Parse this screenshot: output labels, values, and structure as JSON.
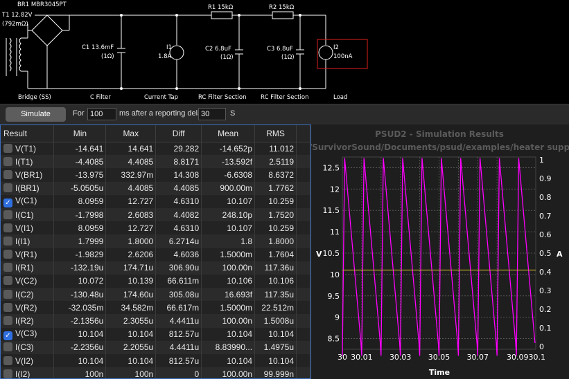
{
  "schematic": {
    "transformer_label": "T1 12.82V",
    "transformer_resistance": "(792mΩ)",
    "bridge_label": "BR1 MBR3045PT",
    "c1_label": "C1 13.6mF",
    "c1_esr": "(1Ω)",
    "i1_name": "I1",
    "i1_value": "1.8A",
    "r1_label": "R1 15kΩ",
    "r2_label": "R2 15kΩ",
    "c2_label": "C2 6.8uF",
    "c2_esr": "(1Ω)",
    "c3_label": "C3 6.8uF",
    "c3_esr": "(1Ω)",
    "i2_name": "I2",
    "i2_value": "100nA",
    "sections": [
      "Bridge (SS)",
      "C Filter",
      "Current Tap",
      "RC Filter Section",
      "RC Filter Section",
      "Load"
    ]
  },
  "toolbar": {
    "simulate_label": "Simulate",
    "for_label": "For",
    "duration_value": "100",
    "after_label": "ms after a reporting delay of",
    "delay_value": "30",
    "unit_label": "S"
  },
  "table": {
    "headers": [
      "Result",
      "Min",
      "Max",
      "Diff",
      "Mean",
      "RMS"
    ],
    "rows": [
      {
        "checked": false,
        "name": "V(T1)",
        "min": "-14.641",
        "max": "14.641",
        "diff": "29.282",
        "mean": "-14.652p",
        "rms": "11.012"
      },
      {
        "checked": false,
        "name": "I(T1)",
        "min": "-4.4085",
        "max": "4.4085",
        "diff": "8.8171",
        "mean": "-13.592f",
        "rms": "2.5119"
      },
      {
        "checked": false,
        "name": "V(BR1)",
        "min": "-13.975",
        "max": "332.97m",
        "diff": "14.308",
        "mean": "-6.6308",
        "rms": "8.6372"
      },
      {
        "checked": false,
        "name": "I(BR1)",
        "min": "-5.0505u",
        "max": "4.4085",
        "diff": "4.4085",
        "mean": "900.00m",
        "rms": "1.7762"
      },
      {
        "checked": true,
        "name": "V(C1)",
        "min": "8.0959",
        "max": "12.727",
        "diff": "4.6310",
        "mean": "10.107",
        "rms": "10.259"
      },
      {
        "checked": false,
        "name": "I(C1)",
        "min": "-1.7998",
        "max": "2.6083",
        "diff": "4.4082",
        "mean": "248.10p",
        "rms": "1.7520"
      },
      {
        "checked": false,
        "name": "V(I1)",
        "min": "8.0959",
        "max": "12.727",
        "diff": "4.6310",
        "mean": "10.107",
        "rms": "10.259"
      },
      {
        "checked": false,
        "name": "I(I1)",
        "min": "1.7999",
        "max": "1.8000",
        "diff": "6.2714u",
        "mean": "1.8",
        "rms": "1.8000"
      },
      {
        "checked": false,
        "name": "V(R1)",
        "min": "-1.9829",
        "max": "2.6206",
        "diff": "4.6036",
        "mean": "1.5000m",
        "rms": "1.7604"
      },
      {
        "checked": false,
        "name": "I(R1)",
        "min": "-132.19u",
        "max": "174.71u",
        "diff": "306.90u",
        "mean": "100.00n",
        "rms": "117.36u"
      },
      {
        "checked": false,
        "name": "V(C2)",
        "min": "10.072",
        "max": "10.139",
        "diff": "66.611m",
        "mean": "10.106",
        "rms": "10.106"
      },
      {
        "checked": false,
        "name": "I(C2)",
        "min": "-130.48u",
        "max": "174.60u",
        "diff": "305.08u",
        "mean": "16.693f",
        "rms": "117.35u"
      },
      {
        "checked": false,
        "name": "V(R2)",
        "min": "-32.035m",
        "max": "34.582m",
        "diff": "66.617m",
        "mean": "1.5000m",
        "rms": "22.512m"
      },
      {
        "checked": false,
        "name": "I(R2)",
        "min": "-2.1356u",
        "max": "2.3055u",
        "diff": "4.4411u",
        "mean": "100.00n",
        "rms": "1.5008u"
      },
      {
        "checked": true,
        "name": "V(C3)",
        "min": "10.104",
        "max": "10.104",
        "diff": "812.57u",
        "mean": "10.104",
        "rms": "10.104"
      },
      {
        "checked": false,
        "name": "I(C3)",
        "min": "-2.2356u",
        "max": "2.2055u",
        "diff": "4.4411u",
        "mean": "8.83990...",
        "rms": "1.4975u"
      },
      {
        "checked": false,
        "name": "V(I2)",
        "min": "10.104",
        "max": "10.104",
        "diff": "812.57u",
        "mean": "10.104",
        "rms": "10.104"
      },
      {
        "checked": false,
        "name": "I(I2)",
        "min": "100n",
        "max": "100n",
        "diff": "0",
        "mean": "100.00n",
        "rms": "99.999n"
      }
    ]
  },
  "chart_data": {
    "type": "line",
    "title": "PSUD2 - Simulation Results",
    "subtitle": "/SurvivorSound/Documents/psud/examples/heater supp",
    "xlabel": "Time",
    "ylabel_left": "V",
    "ylabel_right": "A",
    "xlim": [
      30,
      30.1
    ],
    "x_ticks": [
      "30",
      "30.01",
      "30.03",
      "30.05",
      "30.07",
      "30.0930.1"
    ],
    "ylim_left": [
      8.096,
      12.727
    ],
    "y_ticks_left": [
      "12.5",
      "12",
      "11.5",
      "11",
      "10.5",
      "10",
      "9.5",
      "9",
      "8.5"
    ],
    "ylim_right": [
      0,
      1
    ],
    "y_ticks_right": [
      "1",
      "0.9",
      "0.8",
      "0.7",
      "0.6",
      "0.5",
      "0.4",
      "0.3",
      "0.2",
      "0.1",
      "0"
    ],
    "grid": true,
    "series": [
      {
        "color": "#ff00ff",
        "ripple_hz": 100,
        "min": 8.0959,
        "max": 12.727
      },
      {
        "color": "#b8a030",
        "constant": 10.104
      }
    ]
  }
}
